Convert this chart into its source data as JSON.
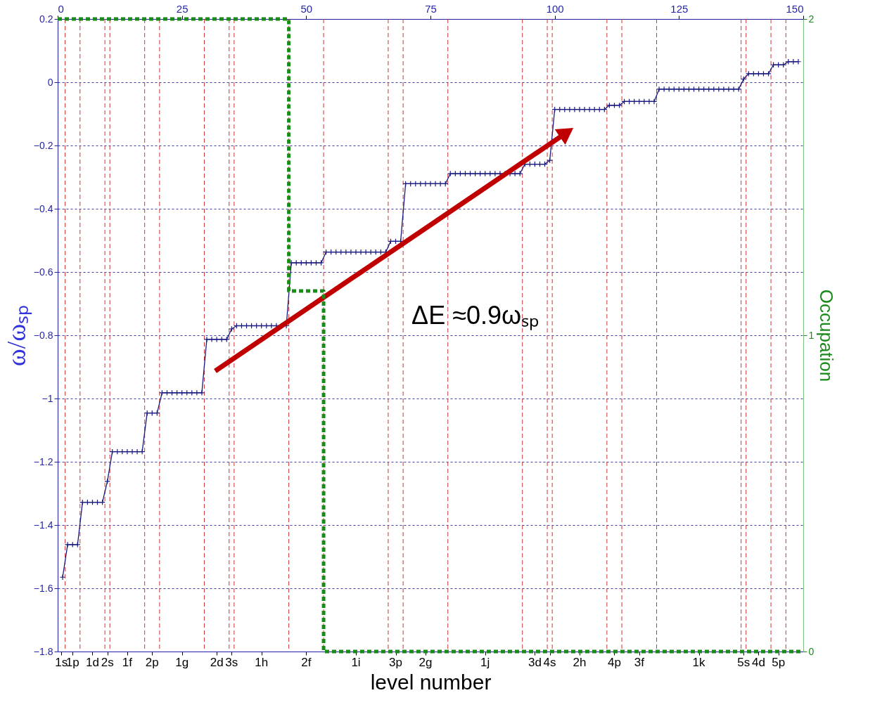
{
  "chart_data": {
    "type": "line",
    "xlabel": "level number",
    "ylabel": "ω/ωₛₚ",
    "y2label": "Occupation",
    "xlim": [
      0,
      150
    ],
    "ylim": [
      -1.8,
      0.2
    ],
    "y2lim": [
      0,
      2
    ],
    "xticks": [
      0,
      25,
      50,
      75,
      100,
      125,
      150
    ],
    "yticks": [
      -1.8,
      -1.6,
      -1.4,
      -1.2,
      -1,
      -0.8,
      -0.6,
      -0.4,
      -0.2,
      0,
      0.2
    ],
    "y2ticks": [
      0,
      1,
      2
    ],
    "grid": "y",
    "marker": "cross",
    "series": [
      {
        "color": "#1a1a80",
        "x": [
          1,
          2,
          3,
          4,
          5,
          6,
          7,
          8,
          9,
          10,
          11,
          12,
          13,
          14,
          15,
          16,
          17,
          18,
          19,
          20,
          21,
          22,
          23,
          24,
          25,
          26,
          27,
          28,
          29,
          30,
          31,
          32,
          33,
          34,
          35,
          36,
          37,
          38,
          39,
          40,
          41,
          42,
          43,
          44,
          45,
          46,
          47,
          48,
          49,
          50,
          51,
          52,
          53,
          54,
          55,
          56,
          57,
          58,
          59,
          60,
          61,
          62,
          63,
          64,
          65,
          66,
          67,
          68,
          69,
          70,
          71,
          72,
          73,
          74,
          75,
          76,
          77,
          78,
          79,
          80,
          81,
          82,
          83,
          84,
          85,
          86,
          87,
          88,
          89,
          90,
          91,
          92,
          93,
          94,
          95,
          96,
          97,
          98,
          99,
          100,
          101,
          102,
          103,
          104,
          105,
          106,
          107,
          108,
          109,
          110,
          111,
          112,
          113,
          114,
          115,
          116,
          117,
          118,
          119,
          120,
          121,
          122,
          123,
          124,
          125,
          126,
          127,
          128,
          129,
          130,
          131,
          132,
          133,
          134,
          135,
          136,
          137,
          138,
          139,
          140,
          141,
          142,
          143,
          144,
          145,
          146,
          147,
          148,
          149
        ],
        "values": [
          -1.565,
          -1.462,
          -1.462,
          -1.462,
          -1.328,
          -1.328,
          -1.328,
          -1.328,
          -1.328,
          -1.262,
          -1.168,
          -1.168,
          -1.168,
          -1.168,
          -1.168,
          -1.168,
          -1.168,
          -1.046,
          -1.046,
          -1.046,
          -0.982,
          -0.982,
          -0.982,
          -0.982,
          -0.982,
          -0.982,
          -0.982,
          -0.982,
          -0.982,
          -0.813,
          -0.813,
          -0.813,
          -0.813,
          -0.813,
          -0.78,
          -0.77,
          -0.77,
          -0.77,
          -0.77,
          -0.77,
          -0.77,
          -0.77,
          -0.77,
          -0.77,
          -0.77,
          -0.77,
          -0.571,
          -0.571,
          -0.571,
          -0.571,
          -0.571,
          -0.571,
          -0.571,
          -0.537,
          -0.537,
          -0.537,
          -0.537,
          -0.537,
          -0.537,
          -0.537,
          -0.537,
          -0.537,
          -0.537,
          -0.537,
          -0.537,
          -0.537,
          -0.503,
          -0.503,
          -0.503,
          -0.321,
          -0.321,
          -0.321,
          -0.321,
          -0.321,
          -0.321,
          -0.321,
          -0.321,
          -0.321,
          -0.289,
          -0.289,
          -0.289,
          -0.289,
          -0.289,
          -0.289,
          -0.289,
          -0.289,
          -0.289,
          -0.289,
          -0.289,
          -0.289,
          -0.289,
          -0.289,
          -0.289,
          -0.259,
          -0.259,
          -0.259,
          -0.259,
          -0.259,
          -0.247,
          -0.086,
          -0.086,
          -0.086,
          -0.086,
          -0.086,
          -0.086,
          -0.086,
          -0.086,
          -0.086,
          -0.086,
          -0.086,
          -0.073,
          -0.073,
          -0.073,
          -0.061,
          -0.061,
          -0.061,
          -0.061,
          -0.061,
          -0.061,
          -0.061,
          -0.022,
          -0.022,
          -0.022,
          -0.022,
          -0.022,
          -0.022,
          -0.022,
          -0.022,
          -0.022,
          -0.022,
          -0.022,
          -0.022,
          -0.022,
          -0.022,
          -0.022,
          -0.022,
          -0.022,
          0.01,
          0.027,
          0.027,
          0.027,
          0.027,
          0.027,
          0.055,
          0.055,
          0.055,
          0.065,
          0.065,
          0.065
        ]
      },
      {
        "type": "step",
        "axis": "y2",
        "color": "#1a8a1a",
        "line_style": "dashed",
        "marker": "none",
        "x": [
          0,
          46.5,
          53.5,
          150
        ],
        "values": [
          2,
          1.14,
          0,
          0
        ]
      },
      {
        "color": "#c00000",
        "marker": "triangle",
        "x": [
          31.7,
          102.4
        ],
        "values": [
          -0.913,
          -0.159
        ]
      }
    ],
    "ref_lines": [
      {
        "axis": "x",
        "value": 1.5,
        "color": "#cc3333",
        "line_style": "dashed"
      },
      {
        "axis": "x",
        "value": 4.5,
        "color": "#cc3333",
        "line_style": "dashed"
      },
      {
        "axis": "x",
        "value": 9.5,
        "color": "#cc3333",
        "line_style": "dashed"
      },
      {
        "axis": "x",
        "value": 10.5,
        "color": "#cc3333",
        "line_style": "dashed"
      },
      {
        "axis": "x",
        "value": 17.5,
        "color": "#cc3333",
        "line_style": "dashed"
      },
      {
        "axis": "x",
        "value": 20.5,
        "color": "#cc3333",
        "line_style": "dashed"
      },
      {
        "axis": "x",
        "value": 29.5,
        "color": "#cc3333",
        "line_style": "dashed"
      },
      {
        "axis": "x",
        "value": 34.5,
        "color": "#cc3333",
        "line_style": "dashed"
      },
      {
        "axis": "x",
        "value": 35.5,
        "color": "#cc3333",
        "line_style": "dashed"
      },
      {
        "axis": "x",
        "value": 46.5,
        "color": "#cc3333",
        "line_style": "dashed"
      },
      {
        "axis": "x",
        "value": 53.5,
        "color": "#cc3333",
        "line_style": "dashed"
      },
      {
        "axis": "x",
        "value": 66.5,
        "color": "#cc3333",
        "line_style": "dashed"
      },
      {
        "axis": "x",
        "value": 69.5,
        "color": "#cc3333",
        "line_style": "dashed"
      },
      {
        "axis": "x",
        "value": 78.5,
        "color": "#cc3333",
        "line_style": "dashed"
      },
      {
        "axis": "x",
        "value": 93.5,
        "color": "#cc3333",
        "line_style": "dashed"
      },
      {
        "axis": "x",
        "value": 98.5,
        "color": "#cc3333",
        "line_style": "dashed"
      },
      {
        "axis": "x",
        "value": 99.5,
        "color": "#cc3333",
        "line_style": "dashed"
      },
      {
        "axis": "x",
        "value": 110.5,
        "color": "#cc3333",
        "line_style": "dashed"
      },
      {
        "axis": "x",
        "value": 113.5,
        "color": "#cc3333",
        "line_style": "dashed"
      },
      {
        "axis": "x",
        "value": 120.5,
        "color": "#cc3333",
        "line_style": "dashed"
      },
      {
        "axis": "x",
        "value": 137.5,
        "color": "#cc3333",
        "line_style": "dashed"
      },
      {
        "axis": "x",
        "value": 138.5,
        "color": "#cc3333",
        "line_style": "dashed"
      },
      {
        "axis": "x",
        "value": 143.5,
        "color": "#cc3333",
        "line_style": "dashed"
      },
      {
        "axis": "x",
        "value": 146.5,
        "color": "#cc3333",
        "line_style": "dashed"
      }
    ],
    "annotations": [
      "ΔE ≈0.9ωₛₚ",
      {
        "text": "1s",
        "x": 0.75
      },
      {
        "text": "1p",
        "x": 3
      },
      {
        "text": "1d",
        "x": 7
      },
      {
        "text": "2s",
        "x": 10
      },
      {
        "text": "1f",
        "x": 14
      },
      {
        "text": "2p",
        "x": 19
      },
      {
        "text": "1g",
        "x": 25
      },
      {
        "text": "2d",
        "x": 32
      },
      {
        "text": "3s",
        "x": 35
      },
      {
        "text": "1h",
        "x": 41
      },
      {
        "text": "2f",
        "x": 50
      },
      {
        "text": "1i",
        "x": 60
      },
      {
        "text": "3p",
        "x": 68
      },
      {
        "text": "2g",
        "x": 74
      },
      {
        "text": "1j",
        "x": 86
      },
      {
        "text": "3d",
        "x": 96
      },
      {
        "text": "4s",
        "x": 99
      },
      {
        "text": "2h",
        "x": 105
      },
      {
        "text": "4p",
        "x": 112
      },
      {
        "text": "3f",
        "x": 117
      },
      {
        "text": "1k",
        "x": 129
      },
      {
        "text": "5s",
        "x": 138
      },
      {
        "text": "4d",
        "x": 141
      },
      {
        "text": "5p",
        "x": 145
      }
    ]
  }
}
